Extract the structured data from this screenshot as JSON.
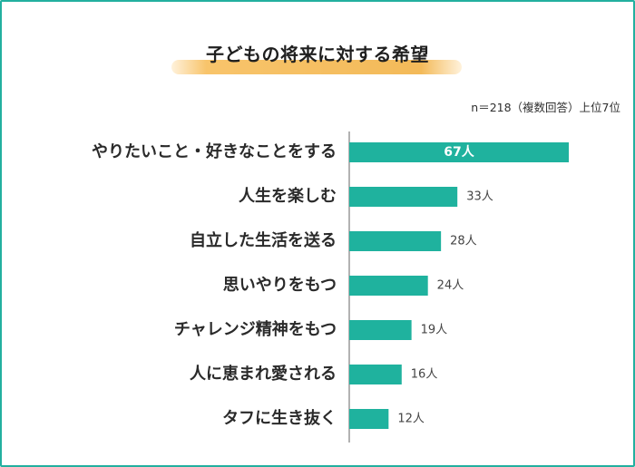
{
  "header": {
    "title": "子どもの将来に対する希望",
    "note": "n＝218（複数回答）上位7位"
  },
  "colors": {
    "frame": "#22b09f",
    "bar": "#1fb29e",
    "highlight": "#f3ba59"
  },
  "chart_data": {
    "type": "bar",
    "orientation": "horizontal",
    "title": "子どもの将来に対する希望",
    "categories": [
      "やりたいこと・好きなことをする",
      "人生を楽しむ",
      "自立した生活を送る",
      "思いやりをもつ",
      "チャレンジ精神をもつ",
      "人に恵まれ愛される",
      "タフに生き抜く"
    ],
    "values": [
      67,
      33,
      28,
      24,
      19,
      16,
      12
    ],
    "value_labels": [
      "67人",
      "33人",
      "28人",
      "24人",
      "19人",
      "16人",
      "12人"
    ],
    "unit": "人",
    "xlim": [
      0,
      67
    ],
    "grid": false
  }
}
